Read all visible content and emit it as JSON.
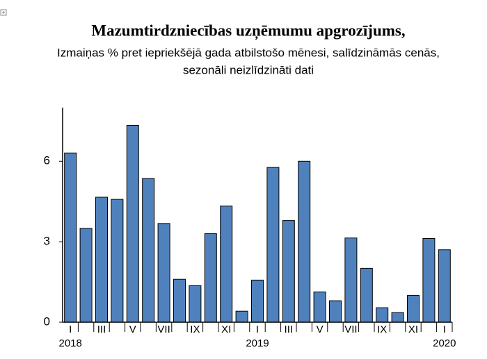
{
  "chart_data": {
    "type": "bar",
    "title": "Mazumtirdzniecības uzņēmumu apgrozījums,",
    "subtitle": [
      "Izmaiņas % pret iepriekšējā gada atbilstošo mēnesi, salīdzināmās cenās,",
      "sezonāli neizlīdzināti dati"
    ],
    "categories": [
      "I",
      null,
      "III",
      null,
      "V",
      null,
      "VII",
      null,
      "IX",
      null,
      "XI",
      null,
      "I",
      null,
      "III",
      null,
      "V",
      null,
      "VII",
      null,
      "IX",
      null,
      "XI",
      null,
      "I"
    ],
    "years": [
      "2018",
      null,
      null,
      null,
      null,
      null,
      null,
      null,
      null,
      null,
      null,
      null,
      "2019",
      null,
      null,
      null,
      null,
      null,
      null,
      null,
      null,
      null,
      null,
      null,
      "2020"
    ],
    "values": [
      6.31,
      3.5,
      4.66,
      4.58,
      7.34,
      5.36,
      3.68,
      1.6,
      1.36,
      3.3,
      4.33,
      0.41,
      1.57,
      5.77,
      3.79,
      6.0,
      1.13,
      0.8,
      3.14,
      2.01,
      0.54,
      0.36,
      1.0,
      3.12,
      2.7
    ],
    "color": "#4f81bd",
    "ylim": [
      0,
      8
    ],
    "yticks": [
      0,
      3,
      6
    ],
    "grid": false
  }
}
